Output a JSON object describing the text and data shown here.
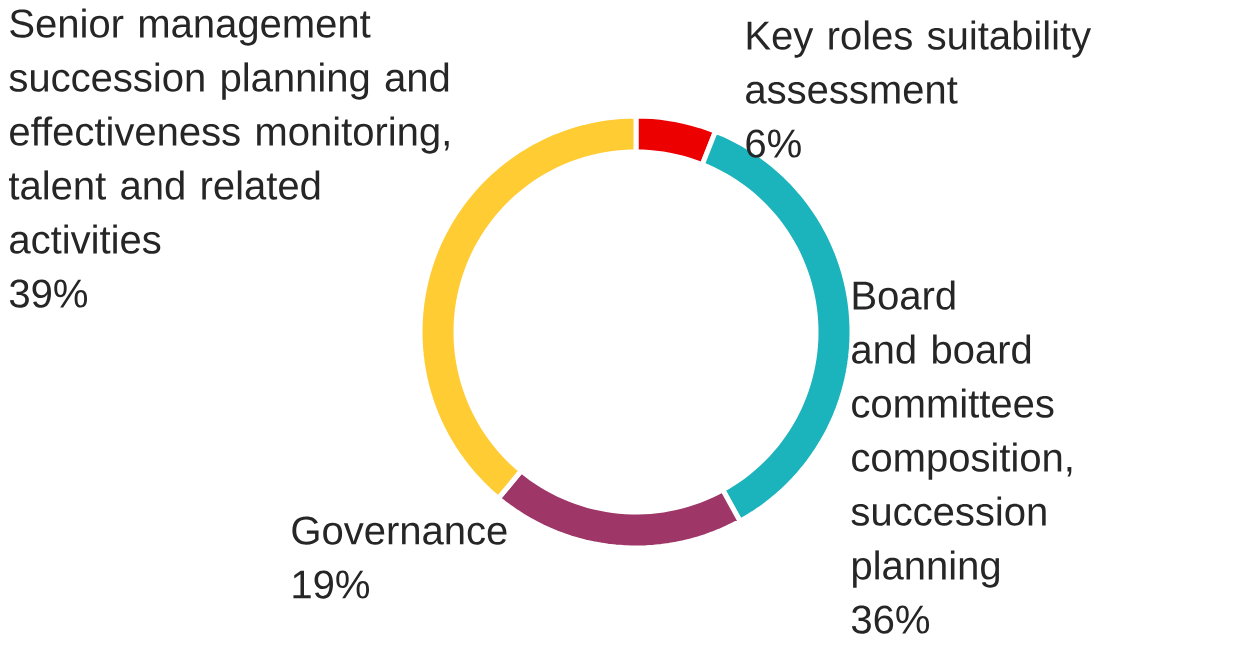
{
  "chart_data": {
    "type": "donut",
    "categories": [
      "Key roles suitability assessment",
      "Board and board committees composition, succession planning",
      "Governance",
      "Senior management succession planning and effectiveness monitoring, talent and related activities"
    ],
    "values": [
      6,
      36,
      19,
      39
    ],
    "colors": [
      "#ec0000",
      "#1bb3bc",
      "#9e3667",
      "#ffcc33"
    ],
    "value_labels": [
      "6%",
      "36%",
      "19%",
      "39%"
    ]
  }
}
